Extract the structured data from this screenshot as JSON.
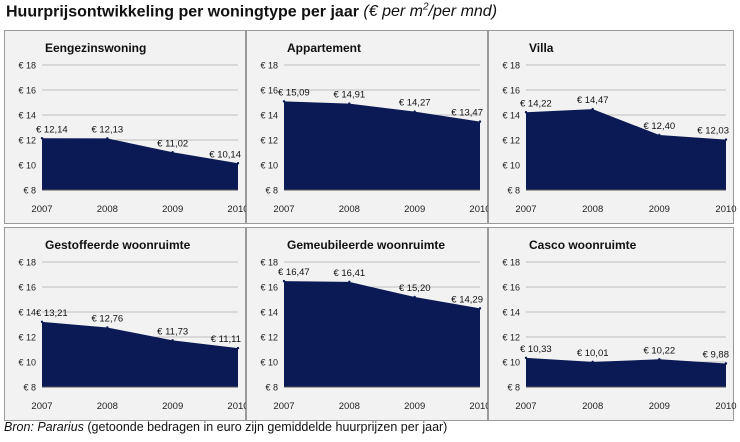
{
  "header": {
    "title": "Huurprijsontwikkeling per woningtype per jaar",
    "unit_prefix": "(€ per m",
    "unit_exp": "2",
    "unit_suffix": "/per mnd)"
  },
  "footer": {
    "source_label": "Bron: Pararius",
    "note": "(getoonde bedragen in euro zijn gemiddelde huurprijzen per jaar)"
  },
  "colors": {
    "area": "#0b1a55",
    "panel_bg": "#f2f2f2",
    "border": "#9a9a9a",
    "grid": "#bdbdbd"
  },
  "chart_data": [
    {
      "type": "area",
      "title": "Eengezinswoning",
      "categories": [
        "2007",
        "2008",
        "2009",
        "2010"
      ],
      "values": [
        12.14,
        12.13,
        11.02,
        10.14
      ],
      "value_labels": [
        "€ 12,14",
        "€ 12,13",
        "€ 11,02",
        "€ 10,14"
      ],
      "yticks": [
        "€ 8",
        "€ 10",
        "€ 12",
        "€ 14",
        "€ 16",
        "€ 18"
      ],
      "ylim": [
        8,
        18
      ],
      "grid": true
    },
    {
      "type": "area",
      "title": "Appartement",
      "categories": [
        "2007",
        "2008",
        "2009",
        "2010"
      ],
      "values": [
        15.09,
        14.91,
        14.27,
        13.47
      ],
      "value_labels": [
        "€ 15,09",
        "€ 14,91",
        "€ 14,27",
        "€ 13,47"
      ],
      "yticks": [
        "€ 8",
        "€ 10",
        "€ 12",
        "€ 14",
        "€ 16",
        "€ 18"
      ],
      "ylim": [
        8,
        18
      ],
      "grid": true
    },
    {
      "type": "area",
      "title": "Villa",
      "categories": [
        "2007",
        "2008",
        "2009",
        "2010"
      ],
      "values": [
        14.22,
        14.47,
        12.4,
        12.03
      ],
      "value_labels": [
        "€ 14,22",
        "€ 14,47",
        "€ 12,40",
        "€ 12,03"
      ],
      "yticks": [
        "€ 8",
        "€ 10",
        "€ 12",
        "€ 14",
        "€ 16",
        "€ 18"
      ],
      "ylim": [
        8,
        18
      ],
      "grid": true
    },
    {
      "type": "area",
      "title": "Gestoffeerde woonruimte",
      "categories": [
        "2007",
        "2008",
        "2009",
        "2010"
      ],
      "values": [
        13.21,
        12.76,
        11.73,
        11.11
      ],
      "value_labels": [
        "€ 13,21",
        "€ 12,76",
        "€ 11,73",
        "€ 11,11"
      ],
      "yticks": [
        "€ 8",
        "€ 10",
        "€ 12",
        "€ 14",
        "€ 16",
        "€ 18"
      ],
      "ylim": [
        8,
        18
      ],
      "grid": true
    },
    {
      "type": "area",
      "title": "Gemeubileerde woonruimte",
      "categories": [
        "2007",
        "2008",
        "2009",
        "2010"
      ],
      "values": [
        16.47,
        16.41,
        15.2,
        14.29
      ],
      "value_labels": [
        "€ 16,47",
        "€ 16,41",
        "€ 15,20",
        "€ 14,29"
      ],
      "yticks": [
        "€ 8",
        "€ 10",
        "€ 12",
        "€ 14",
        "€ 16",
        "€ 18"
      ],
      "ylim": [
        8,
        18
      ],
      "grid": true
    },
    {
      "type": "area",
      "title": "Casco woonruimte",
      "categories": [
        "2007",
        "2008",
        "2009",
        "2010"
      ],
      "values": [
        10.33,
        10.01,
        10.22,
        9.88
      ],
      "value_labels": [
        "€ 10,33",
        "€ 10,01",
        "€ 10,22",
        "€ 9,88"
      ],
      "yticks": [
        "€ 8",
        "€ 10",
        "€ 12",
        "€ 14",
        "€ 16",
        "€ 18"
      ],
      "ylim": [
        8,
        18
      ],
      "grid": true
    }
  ]
}
